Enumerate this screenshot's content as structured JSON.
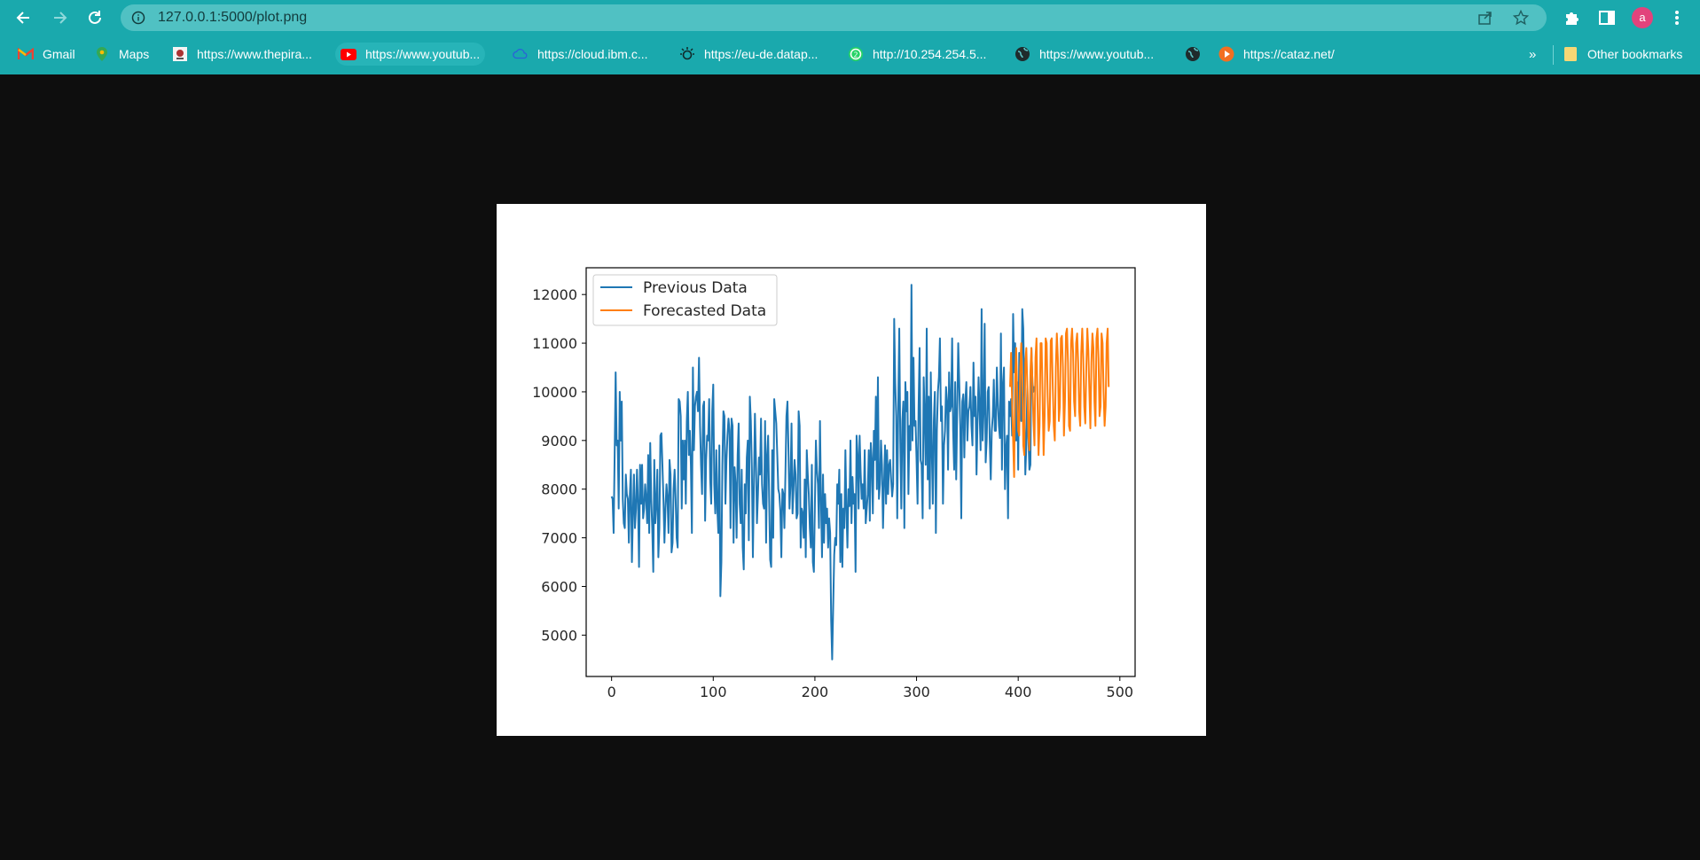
{
  "browser": {
    "url": "127.0.0.1:5000/plot.png",
    "profile_initial": "a",
    "toolbar_color": "#1aa9ad",
    "overflow_label": "»",
    "bookmarks": [
      {
        "label": "Gmail",
        "icon": "gmail-icon"
      },
      {
        "label": "Maps",
        "icon": "maps-icon"
      },
      {
        "label": "https://www.thepira...",
        "icon": "pirate-icon"
      },
      {
        "label": "https://www.youtub...",
        "icon": "youtube-icon"
      },
      {
        "label": "https://cloud.ibm.c...",
        "icon": "ibm-cloud-icon"
      },
      {
        "label": "https://eu-de.datap...",
        "icon": "ibm-data-icon"
      },
      {
        "label": "http://10.254.254.5...",
        "icon": "whatsapp-icon"
      },
      {
        "label": "https://www.youtub...",
        "icon": "globe-icon"
      },
      {
        "label": "",
        "icon": "globe-icon"
      },
      {
        "label": "https://cataz.net/",
        "icon": "play-icon"
      }
    ],
    "other_bookmarks": "Other bookmarks"
  },
  "chart_data": {
    "type": "line",
    "xlim": [
      -25,
      515
    ],
    "ylim": [
      4150,
      12550
    ],
    "xticks": [
      0,
      100,
      200,
      300,
      400,
      500
    ],
    "yticks": [
      5000,
      6000,
      7000,
      8000,
      9000,
      10000,
      11000,
      12000
    ],
    "legend_position": "top-left",
    "series": [
      {
        "name": "Previous Data",
        "color": "#1f77b4",
        "x_start": 0,
        "x_step": 1,
        "values": [
          7850,
          7800,
          7100,
          8700,
          10400,
          8900,
          9000,
          7600,
          10000,
          9000,
          9800,
          7800,
          7300,
          7200,
          8300,
          7900,
          7800,
          6900,
          7900,
          8400,
          6500,
          7500,
          8300,
          7200,
          7600,
          8400,
          7700,
          6400,
          8500,
          7700,
          8500,
          7400,
          7600,
          8100,
          7800,
          7300,
          8700,
          7100,
          8950,
          7800,
          7200,
          6300,
          8600,
          7300,
          7700,
          8400,
          6600,
          7200,
          9100,
          9150,
          8500,
          7800,
          6900,
          7600,
          8100,
          7800,
          7100,
          8600,
          8300,
          6700,
          6900,
          8000,
          8400,
          7800,
          7000,
          6800,
          9850,
          9800,
          9500,
          7600,
          9000,
          8200,
          9000,
          7700,
          9400,
          10000,
          8700,
          9200,
          8500,
          7100,
          10500,
          8800,
          9700,
          9900,
          10000,
          9600,
          10700,
          9300,
          8500,
          7900,
          9700,
          9800,
          7350,
          8600,
          9100,
          9000,
          9850,
          8200,
          7700,
          9600,
          10150,
          8100,
          7500,
          8800,
          7600,
          7100,
          8900,
          5800,
          6500,
          8500,
          9600,
          9500,
          7700,
          8600,
          9100,
          9450,
          9200,
          7200,
          9450,
          9300,
          6900,
          8450,
          8100,
          7000,
          8700,
          9350,
          7700,
          7300,
          8400,
          6800,
          6350,
          8100,
          7500,
          8650,
          9000,
          6950,
          9900,
          9400,
          8400,
          6600,
          8100,
          9550,
          8600,
          7300,
          7900,
          8650,
          8300,
          9450,
          8100,
          7700,
          7600,
          9400,
          6900,
          8700,
          9100,
          7800,
          6550,
          6400,
          8800,
          7000,
          9850,
          9600,
          9350,
          8700,
          8000,
          7900,
          7550,
          6600,
          8000,
          7900,
          7200,
          8300,
          9500,
          9800,
          8800,
          7600,
          8100,
          9350,
          7500,
          8000,
          8600,
          8300,
          7400,
          7500,
          9600,
          9300,
          6800,
          7600,
          7500,
          7000,
          8200,
          6600,
          8800,
          8300,
          7900,
          7200,
          6800,
          8500,
          6500,
          6300,
          7700,
          9000,
          8400,
          8100,
          7200,
          9400,
          7800,
          6600,
          8300,
          6900,
          7900,
          7300,
          7600,
          6800,
          7400,
          7100,
          5300,
          4500,
          5600,
          6650,
          7000,
          6850,
          8100,
          7700,
          8400,
          6500,
          7900,
          6400,
          7600,
          7200,
          8800,
          7600,
          6800,
          8000,
          7650,
          9000,
          7300,
          8250,
          7700,
          7900,
          6300,
          9100,
          8700,
          7600,
          9100,
          8350,
          7800,
          8100,
          7600,
          8800,
          7300,
          7600,
          7900,
          8800,
          7350,
          8950,
          8600,
          7500,
          9200,
          8600,
          9900,
          8000,
          10300,
          7800,
          8100,
          9000,
          8500,
          7200,
          8100,
          8900,
          7700,
          8800,
          7900,
          8500,
          8600,
          8200,
          7850,
          8100,
          11500,
          10200,
          9500,
          7400,
          9700,
          11300,
          9000,
          7600,
          9400,
          9800,
          7200,
          10200,
          9600,
          10000,
          7900,
          9300,
          8800,
          12200,
          9000,
          10700,
          9300,
          9400,
          8600,
          7700,
          9700,
          10900,
          8600,
          8500,
          7400,
          10300,
          9500,
          8500,
          11300,
          8200,
          9900,
          7600,
          10400,
          8800,
          7700,
          9400,
          10000,
          7100,
          9200,
          10000,
          10300,
          11100,
          9400,
          9700,
          7700,
          8900,
          9200,
          10100,
          9800,
          8400,
          10400,
          9600,
          9700,
          11100,
          9200,
          8400,
          10200,
          8200,
          9600,
          11000,
          10200,
          9300,
          7400,
          9800,
          9950,
          8650,
          9800,
          10200,
          9000,
          9600,
          9700,
          10100,
          9300,
          8900,
          10600,
          9500,
          9900,
          8300,
          9400,
          10300,
          9600,
          8800,
          11700,
          9000,
          9600,
          11400,
          8550,
          9000,
          10000,
          10100,
          9000,
          8200,
          9200,
          9500,
          10250,
          9200,
          9200,
          10500,
          9800,
          9300,
          9050,
          11200,
          8400,
          10150,
          10500,
          8000,
          8800,
          9100,
          7400,
          9800,
          9500,
          9850,
          9100,
          11600,
          10400,
          11000,
          9000,
          10200,
          8400,
          10800,
          10100,
          9400,
          11700,
          11300,
          9900,
          8300,
          8900,
          10100,
          9100,
          8400,
          8500,
          10900,
          10200,
          10000,
          10100,
          10100
        ]
      },
      {
        "name": "Forecasted Data",
        "color": "#ff7f0e",
        "x_start": 392,
        "x_step": 1,
        "values": [
          10100,
          10800,
          9800,
          9000,
          8250,
          10300,
          10900,
          10000,
          9200,
          9100,
          10500,
          11000,
          10200,
          8900,
          8700,
          10600,
          10900,
          10100,
          9100,
          8800,
          10400,
          10900,
          10200,
          9400,
          8900,
          10700,
          11100,
          9800,
          8700,
          9300,
          11000,
          11000,
          9900,
          8700,
          9500,
          11100,
          11000,
          9900,
          9200,
          9400,
          11050,
          11100,
          10100,
          9300,
          9000,
          10500,
          11200,
          10700,
          9400,
          9700,
          11100,
          11150,
          10500,
          9100,
          9800,
          11200,
          11300,
          10600,
          9300,
          9200,
          11000,
          11300,
          10800,
          9800,
          9500,
          11000,
          11200,
          10600,
          9600,
          9300,
          10800,
          11300,
          10700,
          9700,
          9350,
          10500,
          11300,
          10850,
          10000,
          9250,
          10600,
          11200,
          10900,
          9800,
          9300,
          11100,
          11300,
          10700,
          9500,
          9700,
          11200,
          11000,
          10000,
          9300,
          9700,
          11000,
          11300,
          10100
        ]
      }
    ]
  }
}
